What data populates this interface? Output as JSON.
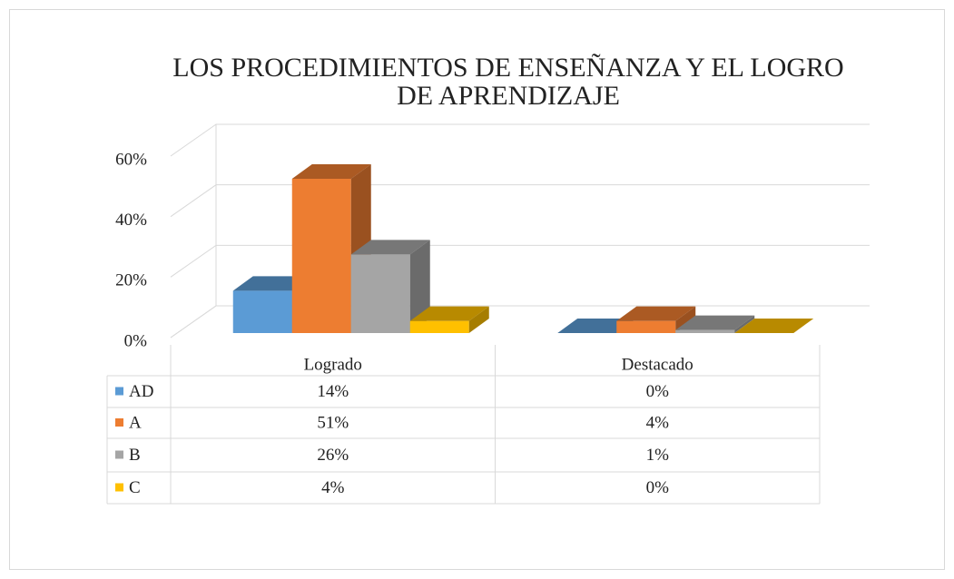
{
  "chart_data": {
    "type": "bar",
    "title": "LOS PROCEDIMIENTOS DE ENSEÑANZA Y EL LOGRO DE APRENDIZAJE",
    "categories": [
      "Logrado",
      "Destacado"
    ],
    "series": [
      {
        "name": "AD",
        "color": "#5b9bd5",
        "values": [
          14,
          0
        ],
        "value_labels": [
          "14%",
          "0%"
        ]
      },
      {
        "name": "A",
        "color": "#ed7d31",
        "values": [
          51,
          4
        ],
        "value_labels": [
          "51%",
          "4%"
        ]
      },
      {
        "name": "B",
        "color": "#a5a5a5",
        "values": [
          26,
          1
        ],
        "value_labels": [
          "26%",
          "1%"
        ]
      },
      {
        "name": "C",
        "color": "#ffc000",
        "values": [
          4,
          0
        ],
        "value_labels": [
          "4%",
          "0%"
        ]
      }
    ],
    "ylim": [
      0,
      60
    ],
    "yticks": [
      {
        "value": 0,
        "label": "0%"
      },
      {
        "value": 20,
        "label": "20%"
      },
      {
        "value": 40,
        "label": "40%"
      },
      {
        "value": 60,
        "label": "60%"
      }
    ],
    "grid": true,
    "data_table": true
  }
}
